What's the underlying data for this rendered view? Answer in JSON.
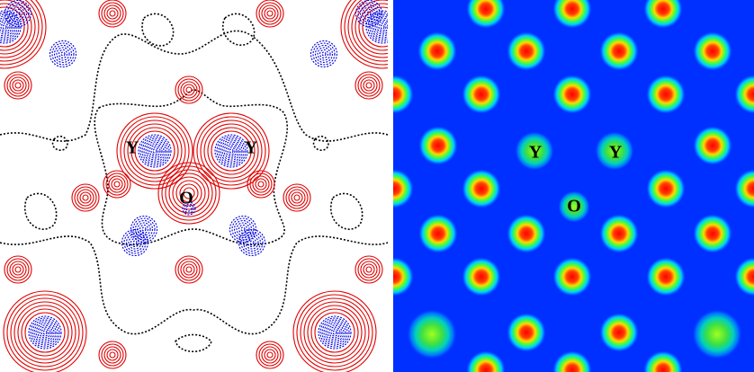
{
  "left_panel": {
    "labels": [
      "Y",
      "Y",
      "O"
    ]
  },
  "right_panel": {
    "labels": [
      "Y",
      "Y",
      "O"
    ]
  }
}
